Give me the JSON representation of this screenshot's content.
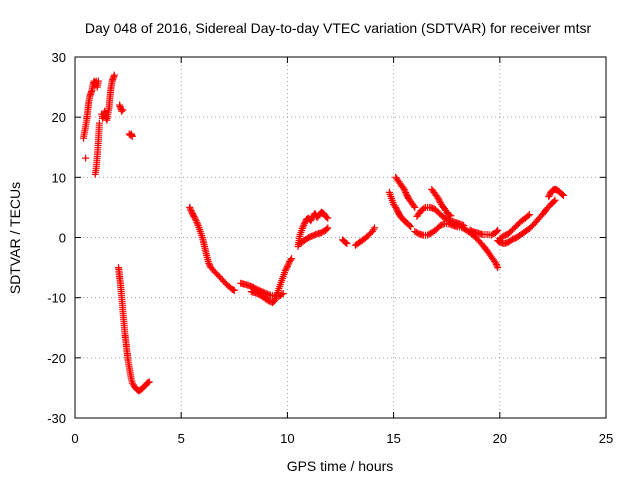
{
  "chart_data": {
    "type": "scatter",
    "title": "Day 048 of 2016, Sidereal Day-to-day VTEC variation (SDTVAR) for receiver mtsr",
    "xlabel": "GPS time / hours",
    "ylabel": "SDTVAR / TECUs",
    "xlim": [
      0,
      25
    ],
    "ylim": [
      -30,
      30
    ],
    "xticks": [
      0,
      5,
      10,
      15,
      20,
      25
    ],
    "yticks": [
      -30,
      -20,
      -10,
      0,
      10,
      20,
      30
    ],
    "grid": true,
    "marker": "+",
    "color": "#ff0000",
    "segments": [
      [
        [
          0.4,
          16.5
        ],
        [
          0.45,
          17.5
        ],
        [
          0.5,
          18.5
        ],
        [
          0.55,
          19.5
        ],
        [
          0.6,
          21
        ],
        [
          0.65,
          22.5
        ],
        [
          0.7,
          23.5
        ],
        [
          0.75,
          24
        ],
        [
          0.8,
          24.5
        ],
        [
          0.85,
          25.5
        ],
        [
          0.9,
          26
        ],
        [
          0.95,
          25.5
        ],
        [
          1.0,
          26
        ],
        [
          1.05,
          25
        ],
        [
          1.1,
          26
        ]
      ],
      [
        [
          0.5,
          13.2
        ]
      ],
      [
        [
          0.95,
          10.5
        ],
        [
          1.0,
          11.5
        ],
        [
          1.05,
          13.5
        ],
        [
          1.1,
          16
        ],
        [
          1.15,
          19
        ]
      ],
      [
        [
          1.25,
          20.5
        ],
        [
          1.3,
          19.8
        ],
        [
          1.35,
          20.5
        ],
        [
          1.4,
          21
        ],
        [
          1.45,
          20
        ],
        [
          1.5,
          19.5
        ],
        [
          1.55,
          20.5
        ],
        [
          1.6,
          21.5
        ],
        [
          1.65,
          23.5
        ],
        [
          1.7,
          25
        ],
        [
          1.75,
          26
        ],
        [
          1.8,
          26.5
        ],
        [
          1.85,
          27
        ]
      ],
      [
        [
          2.1,
          22
        ],
        [
          2.15,
          21.5
        ],
        [
          2.2,
          21
        ],
        [
          2.25,
          21.2
        ]
      ],
      [
        [
          2.55,
          17.2
        ],
        [
          2.6,
          17
        ],
        [
          2.65,
          17.2
        ],
        [
          2.7,
          16.8
        ]
      ],
      [
        [
          2.05,
          -5
        ],
        [
          2.1,
          -6.5
        ],
        [
          2.15,
          -8
        ],
        [
          2.2,
          -10
        ],
        [
          2.25,
          -12
        ],
        [
          2.3,
          -14
        ],
        [
          2.35,
          -16
        ],
        [
          2.4,
          -17.5
        ],
        [
          2.45,
          -19
        ],
        [
          2.5,
          -20.5
        ],
        [
          2.55,
          -21.5
        ],
        [
          2.6,
          -22.5
        ],
        [
          2.65,
          -23.5
        ],
        [
          2.7,
          -24.2
        ],
        [
          2.8,
          -24.8
        ],
        [
          2.9,
          -25.2
        ],
        [
          3.0,
          -25.5
        ],
        [
          3.1,
          -25.3
        ],
        [
          3.2,
          -25
        ],
        [
          3.3,
          -24.6
        ],
        [
          3.4,
          -24.2
        ],
        [
          3.5,
          -24
        ]
      ],
      [
        [
          5.4,
          5
        ],
        [
          5.5,
          4.2
        ],
        [
          5.6,
          3.5
        ],
        [
          5.7,
          2.8
        ],
        [
          5.8,
          2
        ],
        [
          5.9,
          1
        ],
        [
          6.0,
          0
        ],
        [
          6.1,
          -1.5
        ],
        [
          6.2,
          -3
        ],
        [
          6.3,
          -4.3
        ],
        [
          6.4,
          -5
        ],
        [
          6.6,
          -5.8
        ],
        [
          6.8,
          -6.5
        ],
        [
          7.0,
          -7.3
        ],
        [
          7.2,
          -8
        ],
        [
          7.4,
          -8.6
        ],
        [
          7.5,
          -8.8
        ]
      ],
      [
        [
          7.8,
          -7.6
        ],
        [
          8.0,
          -7.8
        ],
        [
          8.2,
          -8
        ],
        [
          8.4,
          -8.3
        ],
        [
          8.6,
          -8.7
        ],
        [
          8.8,
          -9
        ],
        [
          9.0,
          -9.3
        ],
        [
          9.2,
          -9.6
        ],
        [
          9.4,
          -9.7
        ],
        [
          9.6,
          -9.8
        ],
        [
          9.8,
          -9.3
        ]
      ],
      [
        [
          8.3,
          -9
        ],
        [
          8.5,
          -9.2
        ],
        [
          8.7,
          -9.5
        ],
        [
          8.9,
          -10
        ],
        [
          9.1,
          -10.5
        ],
        [
          9.3,
          -10.8
        ],
        [
          9.4,
          -10.5
        ],
        [
          9.5,
          -9.5
        ],
        [
          9.6,
          -8.5
        ],
        [
          9.7,
          -7.5
        ],
        [
          9.8,
          -6.5
        ],
        [
          9.9,
          -5.5
        ],
        [
          10.0,
          -4.8
        ],
        [
          10.1,
          -4
        ],
        [
          10.2,
          -3.5
        ]
      ],
      [
        [
          10.5,
          -1.5
        ],
        [
          10.55,
          -0.5
        ],
        [
          10.6,
          0.5
        ],
        [
          10.7,
          1.5
        ],
        [
          10.8,
          2.3
        ],
        [
          10.9,
          3
        ],
        [
          11.0,
          3.2
        ],
        [
          11.1,
          2.8
        ],
        [
          11.2,
          3.5
        ],
        [
          11.3,
          4
        ],
        [
          11.4,
          3.3
        ],
        [
          11.5,
          3.8
        ],
        [
          11.6,
          4.2
        ],
        [
          11.7,
          4
        ],
        [
          11.8,
          3.5
        ],
        [
          11.9,
          3.2
        ]
      ],
      [
        [
          10.6,
          -1
        ],
        [
          10.8,
          -0.5
        ],
        [
          11.0,
          0
        ],
        [
          11.2,
          0.3
        ],
        [
          11.4,
          0.6
        ],
        [
          11.6,
          0.8
        ],
        [
          11.8,
          1.2
        ],
        [
          11.9,
          1.6
        ]
      ],
      [
        [
          12.6,
          -0.4
        ],
        [
          12.7,
          -0.7
        ],
        [
          12.8,
          -1
        ]
      ],
      [
        [
          13.2,
          -1.3
        ],
        [
          13.4,
          -0.8
        ],
        [
          13.6,
          -0.3
        ],
        [
          13.8,
          0.3
        ],
        [
          14.0,
          1
        ],
        [
          14.1,
          1.6
        ]
      ],
      [
        [
          14.8,
          7.5
        ],
        [
          14.9,
          6.5
        ],
        [
          15.0,
          5.5
        ],
        [
          15.1,
          5
        ],
        [
          15.2,
          4.3
        ],
        [
          15.3,
          3.6
        ],
        [
          15.4,
          3.2
        ],
        [
          15.5,
          2.8
        ],
        [
          15.6,
          2.5
        ],
        [
          15.7,
          2.2
        ],
        [
          15.8,
          1.8
        ]
      ],
      [
        [
          15.1,
          10
        ],
        [
          15.2,
          9.5
        ],
        [
          15.3,
          9
        ],
        [
          15.4,
          8.5
        ],
        [
          15.5,
          8
        ],
        [
          15.6,
          7.2
        ],
        [
          15.7,
          6.5
        ],
        [
          15.8,
          6
        ],
        [
          15.9,
          5.5
        ],
        [
          16.0,
          5
        ]
      ],
      [
        [
          16.0,
          1
        ],
        [
          16.2,
          0.6
        ],
        [
          16.4,
          0.4
        ],
        [
          16.6,
          0.4
        ],
        [
          16.8,
          0.8
        ],
        [
          17.0,
          1.3
        ],
        [
          17.2,
          2
        ],
        [
          17.4,
          2.3
        ],
        [
          17.6,
          2.3
        ],
        [
          17.8,
          2
        ],
        [
          18.0,
          1.8
        ],
        [
          18.2,
          1.7
        ],
        [
          18.4,
          1.3
        ],
        [
          18.6,
          0.8
        ],
        [
          18.8,
          0.2
        ],
        [
          19.0,
          -0.5
        ],
        [
          19.2,
          -1.3
        ],
        [
          19.4,
          -2.2
        ],
        [
          19.6,
          -3.2
        ],
        [
          19.8,
          -4.2
        ],
        [
          19.9,
          -5
        ]
      ],
      [
        [
          16.1,
          3.5
        ],
        [
          16.3,
          4.5
        ],
        [
          16.5,
          5
        ],
        [
          16.7,
          5
        ],
        [
          16.9,
          4.8
        ],
        [
          17.1,
          4.2
        ],
        [
          17.3,
          3.5
        ],
        [
          17.5,
          3
        ],
        [
          17.7,
          2.8
        ],
        [
          17.9,
          2.5
        ],
        [
          18.1,
          2.3
        ],
        [
          18.3,
          2
        ]
      ],
      [
        [
          16.8,
          8
        ],
        [
          16.9,
          7.5
        ],
        [
          17.0,
          7
        ],
        [
          17.1,
          6.5
        ],
        [
          17.2,
          5.8
        ],
        [
          17.3,
          5.2
        ],
        [
          17.4,
          4.8
        ],
        [
          17.5,
          4.2
        ],
        [
          17.6,
          3.8
        ],
        [
          17.7,
          3.6
        ]
      ],
      [
        [
          18.6,
          1.2
        ],
        [
          18.8,
          0.9
        ],
        [
          19.0,
          0.7
        ],
        [
          19.2,
          0.5
        ],
        [
          19.4,
          0.5
        ],
        [
          19.6,
          0.4
        ],
        [
          19.8,
          0.8
        ],
        [
          19.9,
          1.2
        ]
      ],
      [
        [
          19.9,
          -0.5
        ],
        [
          20.0,
          -0.8
        ],
        [
          20.2,
          -1
        ],
        [
          20.4,
          -0.8
        ],
        [
          20.6,
          -0.3
        ],
        [
          20.8,
          0
        ],
        [
          21.0,
          0.5
        ],
        [
          21.2,
          1
        ],
        [
          21.4,
          1.5
        ],
        [
          21.6,
          2.2
        ],
        [
          21.8,
          3
        ],
        [
          22.0,
          3.8
        ],
        [
          22.2,
          4.7
        ],
        [
          22.4,
          5.5
        ],
        [
          22.5,
          5.8
        ],
        [
          22.6,
          6.2
        ]
      ],
      [
        [
          20.0,
          -0.2
        ],
        [
          20.2,
          0.3
        ],
        [
          20.4,
          0.6
        ],
        [
          20.6,
          1.3
        ],
        [
          20.8,
          2
        ],
        [
          21.0,
          2.7
        ],
        [
          21.2,
          3.2
        ],
        [
          21.4,
          3.8
        ]
      ],
      [
        [
          22.3,
          6.8
        ],
        [
          22.4,
          7.5
        ],
        [
          22.5,
          7.9
        ],
        [
          22.6,
          8
        ],
        [
          22.7,
          7.9
        ],
        [
          22.8,
          7.6
        ],
        [
          22.9,
          7.3
        ],
        [
          23.0,
          7
        ]
      ]
    ]
  }
}
